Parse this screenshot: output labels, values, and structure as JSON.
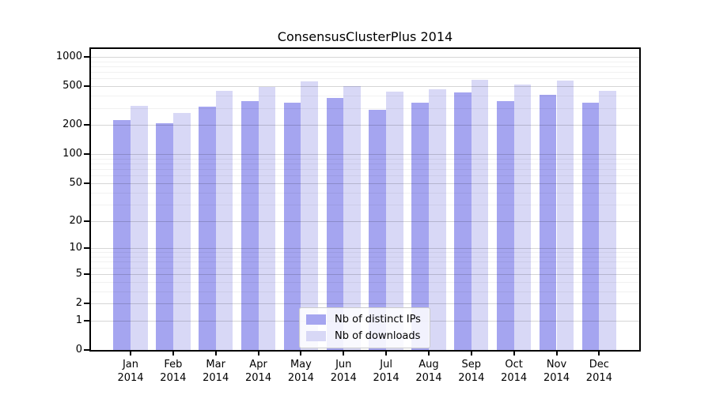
{
  "title": "ConsensusClusterPlus 2014",
  "chart_data": {
    "type": "bar",
    "title": "ConsensusClusterPlus 2014",
    "xlabel": "",
    "ylabel": "",
    "scale": "log1p",
    "grid": "on",
    "legend_position": "lower center",
    "year": "2014",
    "categories": [
      "Jan",
      "Feb",
      "Mar",
      "Apr",
      "May",
      "Jun",
      "Jul",
      "Aug",
      "Sep",
      "Oct",
      "Nov",
      "Dec"
    ],
    "series": [
      {
        "name": "Nb of distinct IPs",
        "color": "#a5a5f0",
        "values": [
          224,
          210,
          308,
          349,
          338,
          376,
          289,
          342,
          433,
          355,
          409,
          340
        ]
      },
      {
        "name": "Nb of downloads",
        "color": "#d8d8f6",
        "values": [
          315,
          264,
          447,
          491,
          556,
          500,
          441,
          467,
          580,
          524,
          569,
          449
        ]
      }
    ],
    "yticks": [
      0,
      1,
      2,
      5,
      10,
      20,
      50,
      100,
      200,
      500,
      1000
    ],
    "minor_gridlines": [
      3,
      4,
      6,
      7,
      8,
      9,
      30,
      40,
      60,
      70,
      80,
      90,
      300,
      400,
      600,
      700,
      800,
      900
    ],
    "ylim": [
      0,
      1250
    ]
  },
  "colors": {
    "distinct_ips": "#a5a5f0",
    "downloads": "#d8d8f6",
    "axis": "#000000",
    "major_grid": "#d6d6d6",
    "minor_grid": "#efefef"
  }
}
